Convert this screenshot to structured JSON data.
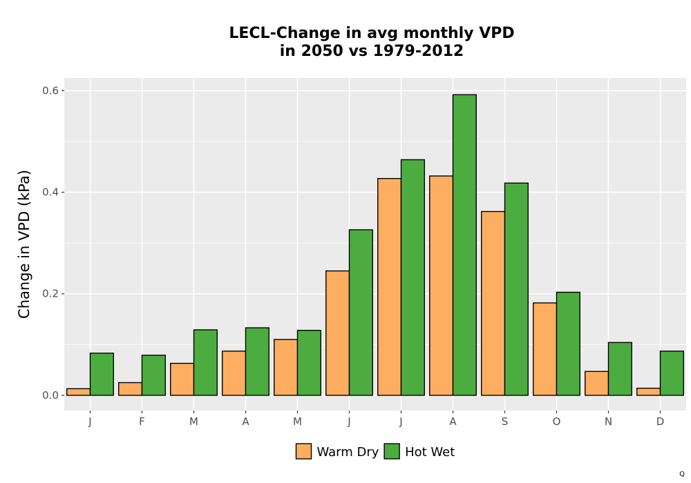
{
  "chart_data": {
    "type": "bar",
    "title_lines": [
      "LECL-Change in avg monthly VPD",
      "in 2050 vs 1979-2012"
    ],
    "xlabel": "",
    "ylabel": "Change in VPD (kPa)",
    "ylim": [
      -0.03,
      0.625
    ],
    "yticks": [
      0.0,
      0.2,
      0.4,
      0.6
    ],
    "ytick_labels": [
      "0.0",
      "0.2",
      "0.4",
      "0.6"
    ],
    "categories": [
      "J",
      "F",
      "M",
      "A",
      "M",
      "J",
      "J",
      "A",
      "S",
      "O",
      "N",
      "D"
    ],
    "series": [
      {
        "name": "Warm Dry",
        "color": "#FDAE61",
        "values": [
          0.013,
          0.025,
          0.063,
          0.087,
          0.11,
          0.245,
          0.427,
          0.432,
          0.362,
          0.182,
          0.047,
          0.014
        ]
      },
      {
        "name": "Hot Wet",
        "color": "#4DAC3F",
        "values": [
          0.083,
          0.079,
          0.129,
          0.133,
          0.128,
          0.326,
          0.464,
          0.592,
          0.418,
          0.203,
          0.104,
          0.087
        ]
      }
    ],
    "grid": true,
    "legend_position": "bottom",
    "panel_background": "#EBEBEB",
    "bar_outline": "#000000"
  },
  "corner_mark": "Q"
}
